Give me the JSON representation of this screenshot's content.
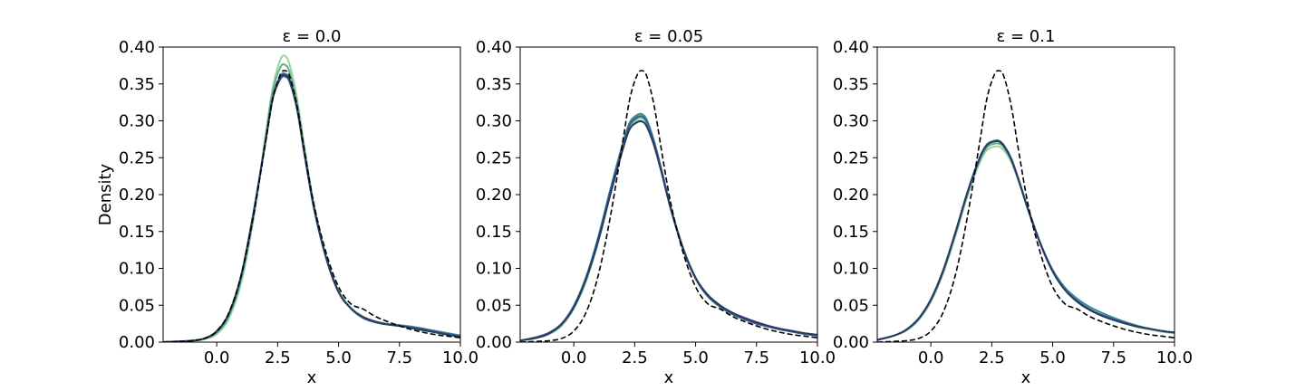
{
  "chart_data": [
    {
      "type": "line",
      "title": "ε = 0.0",
      "xlabel": "x",
      "ylabel": "Density",
      "xlim": [
        -2.2,
        10.0
      ],
      "ylim": [
        0.0,
        0.4
      ],
      "xticks": [
        "0.0",
        "2.5",
        "5.0",
        "7.5",
        "10.0"
      ],
      "yticks": [
        "0.00",
        "0.05",
        "0.10",
        "0.15",
        "0.20",
        "0.25",
        "0.30",
        "0.35",
        "0.40"
      ],
      "grid": false,
      "x": [
        -2.2,
        -1.5,
        -1.0,
        -0.5,
        0.0,
        0.5,
        1.0,
        1.5,
        2.0,
        2.3,
        2.6,
        2.8,
        3.0,
        3.3,
        3.6,
        4.0,
        4.5,
        5.0,
        5.5,
        6.0,
        6.5,
        7.0,
        7.5,
        8.0,
        8.5,
        9.0,
        9.5,
        10.0
      ],
      "reference": {
        "style": "dashed",
        "color": "#000000",
        "values": [
          0.0,
          0.001,
          0.002,
          0.005,
          0.015,
          0.04,
          0.09,
          0.17,
          0.27,
          0.33,
          0.362,
          0.368,
          0.36,
          0.32,
          0.26,
          0.185,
          0.12,
          0.075,
          0.052,
          0.045,
          0.035,
          0.028,
          0.022,
          0.017,
          0.013,
          0.01,
          0.008,
          0.006
        ]
      },
      "series": [
        {
          "color": "#9ad39c",
          "values": [
            0.0,
            0.001,
            0.002,
            0.004,
            0.011,
            0.032,
            0.08,
            0.165,
            0.28,
            0.345,
            0.382,
            0.388,
            0.375,
            0.33,
            0.265,
            0.185,
            0.115,
            0.07,
            0.047,
            0.035,
            0.028,
            0.024,
            0.022,
            0.019,
            0.016,
            0.013,
            0.01,
            0.008
          ]
        },
        {
          "color": "#5fb08e",
          "values": [
            0.0,
            0.001,
            0.002,
            0.005,
            0.013,
            0.036,
            0.085,
            0.168,
            0.275,
            0.34,
            0.372,
            0.376,
            0.365,
            0.322,
            0.26,
            0.182,
            0.113,
            0.069,
            0.046,
            0.034,
            0.028,
            0.025,
            0.023,
            0.02,
            0.017,
            0.014,
            0.011,
            0.008
          ]
        },
        {
          "color": "#3b8b95",
          "values": [
            0.0,
            0.001,
            0.002,
            0.005,
            0.014,
            0.038,
            0.088,
            0.172,
            0.272,
            0.332,
            0.36,
            0.364,
            0.355,
            0.316,
            0.255,
            0.18,
            0.113,
            0.068,
            0.046,
            0.033,
            0.027,
            0.024,
            0.023,
            0.021,
            0.018,
            0.015,
            0.012,
            0.009
          ]
        },
        {
          "color": "#37608f",
          "values": [
            0.0,
            0.001,
            0.002,
            0.005,
            0.014,
            0.038,
            0.089,
            0.173,
            0.271,
            0.33,
            0.356,
            0.36,
            0.352,
            0.315,
            0.255,
            0.18,
            0.113,
            0.068,
            0.046,
            0.033,
            0.027,
            0.024,
            0.022,
            0.02,
            0.018,
            0.014,
            0.011,
            0.008
          ]
        },
        {
          "color": "#2b3a62",
          "values": [
            0.0,
            0.001,
            0.002,
            0.005,
            0.015,
            0.039,
            0.09,
            0.174,
            0.272,
            0.331,
            0.358,
            0.362,
            0.354,
            0.316,
            0.256,
            0.181,
            0.114,
            0.068,
            0.046,
            0.034,
            0.028,
            0.024,
            0.022,
            0.019,
            0.016,
            0.013,
            0.01,
            0.007
          ]
        }
      ]
    },
    {
      "type": "line",
      "title": "ε = 0.05",
      "xlabel": "x",
      "ylabel": "",
      "xlim": [
        -2.2,
        10.0
      ],
      "ylim": [
        0.0,
        0.4
      ],
      "xticks": [
        "0.0",
        "2.5",
        "5.0",
        "7.5",
        "10.0"
      ],
      "yticks": [
        "0.00",
        "0.05",
        "0.10",
        "0.15",
        "0.20",
        "0.25",
        "0.30",
        "0.35",
        "0.40"
      ],
      "grid": false,
      "x": [
        -2.2,
        -1.5,
        -1.0,
        -0.5,
        0.0,
        0.5,
        1.0,
        1.5,
        2.0,
        2.3,
        2.6,
        2.8,
        3.0,
        3.3,
        3.6,
        4.0,
        4.5,
        5.0,
        5.5,
        6.0,
        6.5,
        7.0,
        7.5,
        8.0,
        8.5,
        9.0,
        9.5,
        10.0
      ],
      "reference": {
        "style": "dashed",
        "color": "#000000",
        "values": [
          0.0,
          0.001,
          0.002,
          0.005,
          0.015,
          0.04,
          0.09,
          0.17,
          0.27,
          0.33,
          0.362,
          0.368,
          0.36,
          0.32,
          0.26,
          0.185,
          0.12,
          0.075,
          0.052,
          0.045,
          0.035,
          0.028,
          0.022,
          0.017,
          0.013,
          0.01,
          0.008,
          0.006
        ]
      },
      "series": [
        {
          "color": "#9ad39c",
          "values": [
            0.002,
            0.006,
            0.011,
            0.022,
            0.045,
            0.082,
            0.135,
            0.2,
            0.262,
            0.29,
            0.3,
            0.3,
            0.293,
            0.268,
            0.232,
            0.18,
            0.127,
            0.088,
            0.064,
            0.05,
            0.04,
            0.032,
            0.026,
            0.021,
            0.017,
            0.014,
            0.011,
            0.009
          ]
        },
        {
          "color": "#5fb08e",
          "values": [
            0.002,
            0.007,
            0.012,
            0.024,
            0.047,
            0.085,
            0.138,
            0.203,
            0.264,
            0.293,
            0.303,
            0.304,
            0.297,
            0.27,
            0.233,
            0.18,
            0.126,
            0.087,
            0.063,
            0.049,
            0.039,
            0.031,
            0.025,
            0.021,
            0.017,
            0.014,
            0.011,
            0.009
          ]
        },
        {
          "color": "#3b8b95",
          "values": [
            0.002,
            0.007,
            0.013,
            0.025,
            0.049,
            0.088,
            0.142,
            0.207,
            0.268,
            0.298,
            0.308,
            0.309,
            0.301,
            0.272,
            0.234,
            0.18,
            0.126,
            0.087,
            0.063,
            0.048,
            0.038,
            0.031,
            0.025,
            0.021,
            0.017,
            0.014,
            0.011,
            0.009
          ]
        },
        {
          "color": "#37608f",
          "values": [
            0.002,
            0.007,
            0.013,
            0.025,
            0.049,
            0.087,
            0.14,
            0.205,
            0.265,
            0.295,
            0.305,
            0.306,
            0.298,
            0.27,
            0.232,
            0.179,
            0.125,
            0.086,
            0.062,
            0.048,
            0.038,
            0.031,
            0.025,
            0.021,
            0.017,
            0.014,
            0.011,
            0.009
          ]
        },
        {
          "color": "#2b3a62",
          "values": [
            0.002,
            0.006,
            0.012,
            0.024,
            0.047,
            0.085,
            0.137,
            0.2,
            0.26,
            0.289,
            0.298,
            0.299,
            0.292,
            0.266,
            0.23,
            0.178,
            0.125,
            0.087,
            0.064,
            0.05,
            0.04,
            0.033,
            0.027,
            0.022,
            0.018,
            0.015,
            0.012,
            0.01
          ]
        }
      ]
    },
    {
      "type": "line",
      "title": "ε = 0.1",
      "xlabel": "x",
      "ylabel": "",
      "xlim": [
        -2.2,
        10.0
      ],
      "ylim": [
        0.0,
        0.4
      ],
      "xticks": [
        "0.0",
        "2.5",
        "5.0",
        "7.5",
        "10.0"
      ],
      "yticks": [
        "0.00",
        "0.05",
        "0.10",
        "0.15",
        "0.20",
        "0.25",
        "0.30",
        "0.35",
        "0.40"
      ],
      "grid": false,
      "x": [
        -2.2,
        -1.5,
        -1.0,
        -0.5,
        0.0,
        0.5,
        1.0,
        1.5,
        2.0,
        2.3,
        2.6,
        2.8,
        3.0,
        3.3,
        3.6,
        4.0,
        4.5,
        5.0,
        5.5,
        6.0,
        6.5,
        7.0,
        7.5,
        8.0,
        8.5,
        9.0,
        9.5,
        10.0
      ],
      "reference": {
        "style": "dashed",
        "color": "#000000",
        "values": [
          0.0,
          0.001,
          0.002,
          0.005,
          0.015,
          0.04,
          0.09,
          0.17,
          0.27,
          0.33,
          0.362,
          0.368,
          0.36,
          0.32,
          0.26,
          0.185,
          0.12,
          0.075,
          0.052,
          0.045,
          0.035,
          0.028,
          0.022,
          0.017,
          0.013,
          0.01,
          0.008,
          0.006
        ]
      },
      "series": [
        {
          "color": "#9ad39c",
          "values": [
            0.003,
            0.009,
            0.016,
            0.03,
            0.055,
            0.093,
            0.143,
            0.198,
            0.243,
            0.26,
            0.265,
            0.265,
            0.26,
            0.244,
            0.218,
            0.178,
            0.133,
            0.096,
            0.071,
            0.055,
            0.044,
            0.036,
            0.03,
            0.025,
            0.02,
            0.017,
            0.014,
            0.012
          ]
        },
        {
          "color": "#5fb08e",
          "values": [
            0.003,
            0.009,
            0.016,
            0.031,
            0.056,
            0.094,
            0.145,
            0.2,
            0.246,
            0.264,
            0.269,
            0.269,
            0.264,
            0.247,
            0.22,
            0.179,
            0.133,
            0.096,
            0.071,
            0.055,
            0.044,
            0.037,
            0.031,
            0.026,
            0.021,
            0.018,
            0.015,
            0.013
          ]
        },
        {
          "color": "#3b8b95",
          "values": [
            0.003,
            0.009,
            0.017,
            0.032,
            0.057,
            0.096,
            0.147,
            0.203,
            0.25,
            0.268,
            0.273,
            0.273,
            0.267,
            0.249,
            0.221,
            0.18,
            0.134,
            0.098,
            0.074,
            0.059,
            0.048,
            0.04,
            0.033,
            0.027,
            0.022,
            0.018,
            0.015,
            0.013
          ]
        },
        {
          "color": "#37608f",
          "values": [
            0.003,
            0.009,
            0.017,
            0.032,
            0.057,
            0.096,
            0.147,
            0.202,
            0.249,
            0.267,
            0.272,
            0.272,
            0.266,
            0.248,
            0.22,
            0.179,
            0.133,
            0.096,
            0.071,
            0.056,
            0.045,
            0.037,
            0.031,
            0.026,
            0.021,
            0.018,
            0.015,
            0.013
          ]
        },
        {
          "color": "#2b3a62",
          "values": [
            0.003,
            0.009,
            0.017,
            0.032,
            0.058,
            0.097,
            0.148,
            0.203,
            0.249,
            0.267,
            0.272,
            0.272,
            0.266,
            0.248,
            0.22,
            0.179,
            0.133,
            0.096,
            0.071,
            0.055,
            0.044,
            0.036,
            0.03,
            0.025,
            0.021,
            0.018,
            0.015,
            0.013
          ]
        }
      ]
    }
  ]
}
